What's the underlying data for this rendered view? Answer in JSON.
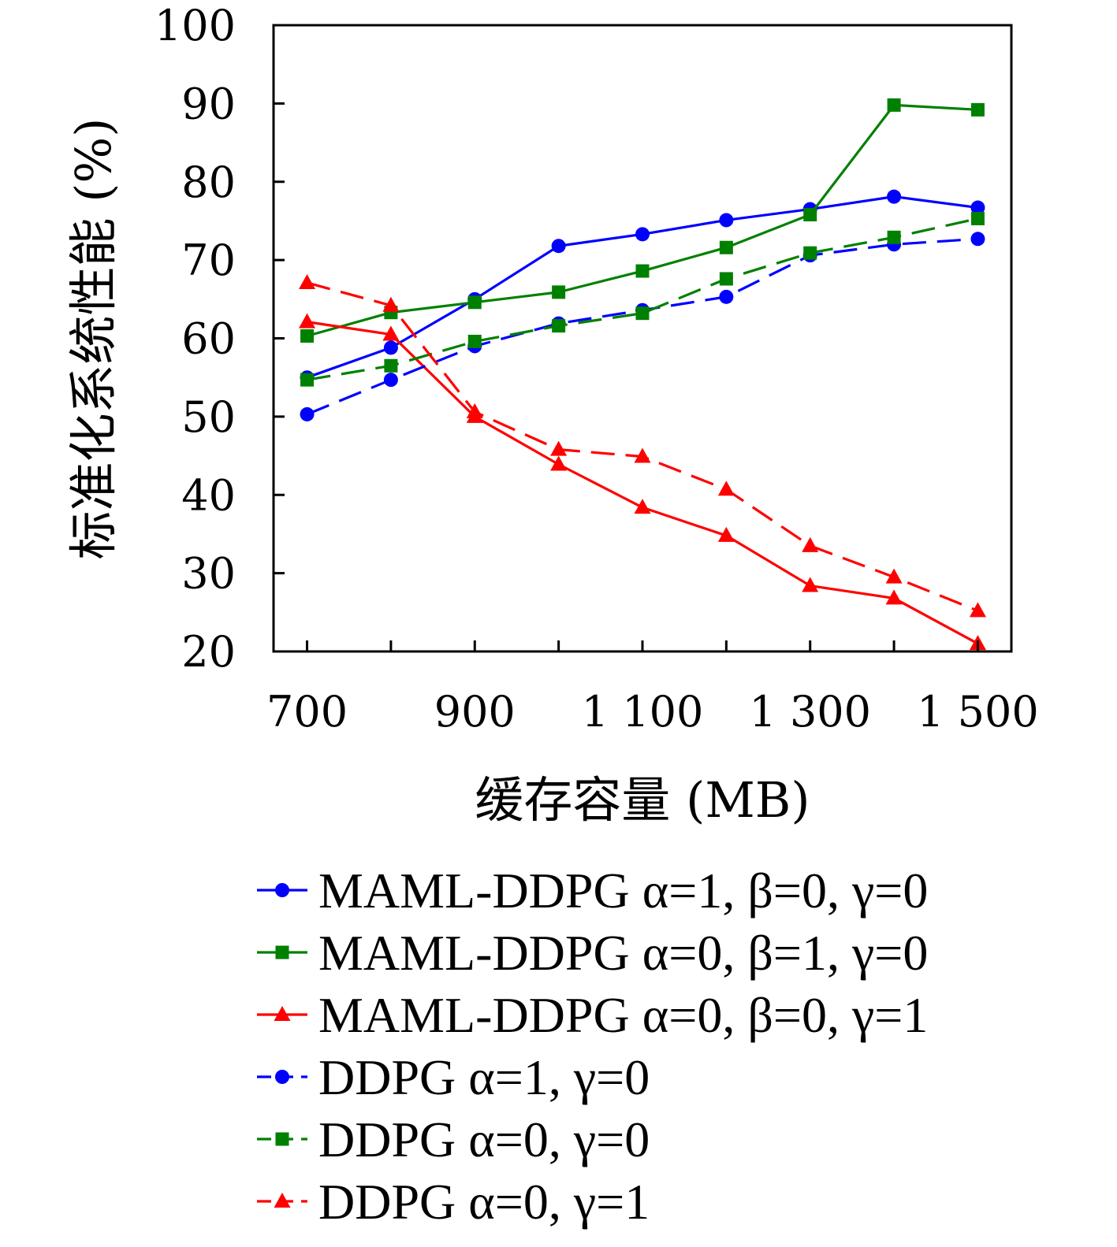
{
  "chart_data": {
    "type": "line",
    "xlabel": "缓存容量 (MB)",
    "ylabel": "标准化系统性能 (%)",
    "x": [
      700,
      800,
      900,
      1000,
      1100,
      1200,
      1300,
      1400,
      1500
    ],
    "xlim": [
      660,
      1540
    ],
    "ylim": [
      20,
      100
    ],
    "xticks": [
      700,
      900,
      1100,
      1300,
      1500
    ],
    "xtick_labels": [
      "700",
      "900",
      "1 100",
      "1 300",
      "1 500"
    ],
    "yticks": [
      20,
      30,
      40,
      50,
      60,
      70,
      80,
      90,
      100
    ],
    "ytick_labels": [
      "20",
      "30",
      "40",
      "50",
      "60",
      "70",
      "80",
      "90",
      "100"
    ],
    "grid": false,
    "legend_position": "bottom",
    "series": [
      {
        "name": "MAML-DDPG α=1, β=0, γ=0",
        "color": "#0000ff",
        "marker": "circle",
        "dash": "solid",
        "values": [
          55.0,
          58.8,
          65.0,
          71.8,
          73.3,
          75.1,
          76.5,
          78.1,
          76.7
        ]
      },
      {
        "name": "MAML-DDPG α=0, β=1, γ=0",
        "color": "#008000",
        "marker": "square",
        "dash": "solid",
        "values": [
          60.3,
          63.3,
          64.6,
          65.9,
          68.6,
          71.6,
          75.8,
          89.8,
          89.2
        ]
      },
      {
        "name": "MAML-DDPG α=0, β=0, γ=1",
        "color": "#ff0000",
        "marker": "triangle",
        "dash": "solid",
        "values": [
          62.1,
          60.5,
          50.0,
          43.9,
          38.4,
          34.8,
          28.4,
          26.8,
          21.0
        ]
      },
      {
        "name": "DDPG α=1, γ=0",
        "color": "#0000ff",
        "marker": "circle",
        "dash": "dashed",
        "values": [
          50.3,
          54.7,
          59.0,
          61.9,
          63.6,
          65.3,
          70.6,
          72.0,
          72.7
        ]
      },
      {
        "name": "DDPG α=0, γ=0",
        "color": "#008000",
        "marker": "square",
        "dash": "dashed",
        "values": [
          54.7,
          56.5,
          59.6,
          61.6,
          63.2,
          67.6,
          70.9,
          72.9,
          75.3
        ]
      },
      {
        "name": "DDPG α=0, γ=1",
        "color": "#ff0000",
        "marker": "triangle",
        "dash": "dashed",
        "values": [
          67.1,
          64.2,
          50.6,
          45.8,
          44.9,
          40.7,
          33.5,
          29.5,
          25.2
        ]
      }
    ]
  }
}
